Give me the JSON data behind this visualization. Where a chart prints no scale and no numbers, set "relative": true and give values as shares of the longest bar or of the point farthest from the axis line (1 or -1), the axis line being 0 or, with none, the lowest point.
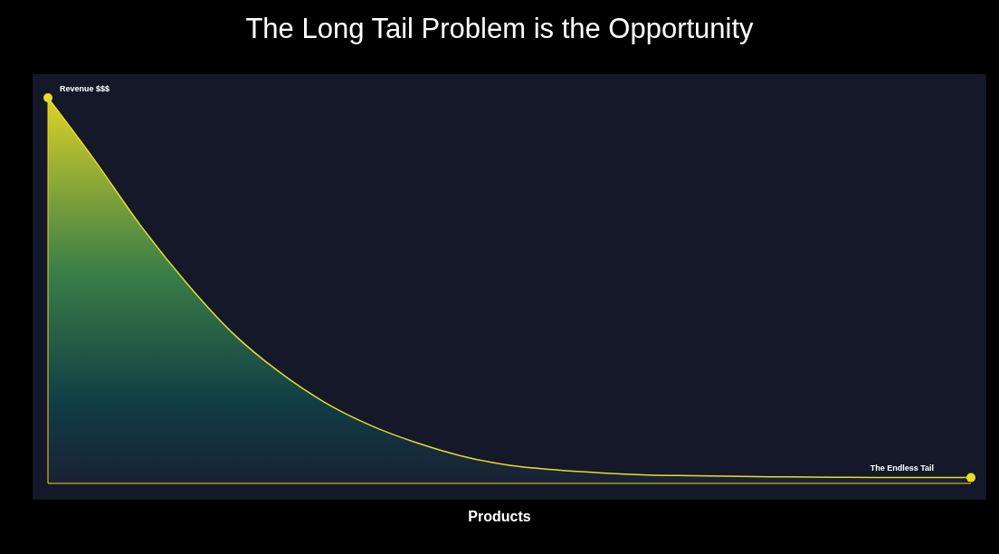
{
  "chart_data": {
    "type": "area",
    "title": "The Long Tail Problem is the Opportunity",
    "xlabel": "Products",
    "relative": true,
    "categories": [
      null,
      null,
      null,
      null,
      null,
      null,
      null,
      null,
      null,
      null,
      null,
      null,
      null,
      null,
      null,
      null,
      null,
      null,
      null,
      null,
      null
    ],
    "series": [
      {
        "color": "#e8dc28",
        "values": [
          1,
          0.84,
          0.67,
          0.52,
          0.39,
          0.29,
          0.21,
          0.15,
          0.105,
          0.07,
          0.047,
          0.035,
          0.027,
          0.022,
          0.02,
          0.018,
          0.017,
          0.016,
          0.015,
          0.015,
          0.015
        ]
      }
    ],
    "annotations": [
      "Revenue $$$",
      "The Endless Tail"
    ]
  }
}
